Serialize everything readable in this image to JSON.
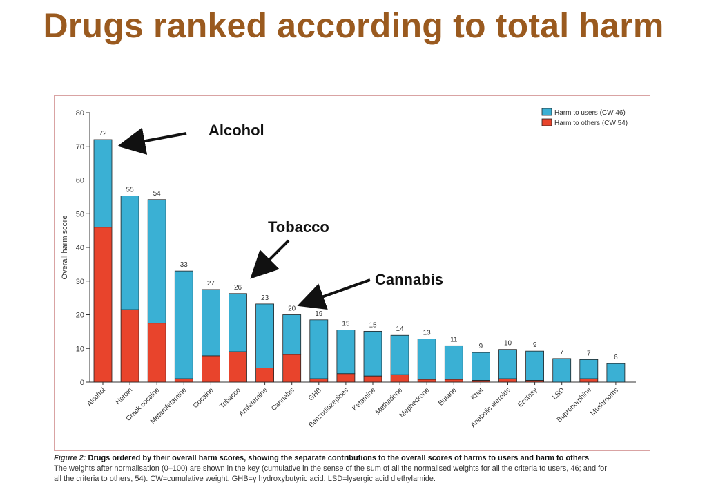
{
  "slide": {
    "title": "Drugs ranked according to total harm"
  },
  "annotations": {
    "alcohol": "Alcohol",
    "tobacco": "Tobacco",
    "cannabis": "Cannabis"
  },
  "caption": {
    "figure_label": "Figure 2:",
    "title": " Drugs ordered by their overall harm scores, showing the separate contributions to the overall scores of harms to users and harm to others",
    "line2": "The weights after normalisation (0–100) are shown in the key (cumulative in the sense of the sum of all the normalised weights for all the criteria to users, 46; and for",
    "line3": "all the criteria to others, 54). CW=cumulative weight. GHB=γ hydroxybutyric acid. LSD=lysergic acid diethylamide."
  },
  "chart_data": {
    "type": "bar",
    "stacked": true,
    "ylabel": "Overall harm score",
    "ylim": [
      0,
      80
    ],
    "yticks": [
      0,
      10,
      20,
      30,
      40,
      50,
      60,
      70,
      80
    ],
    "legend_position": "top-right",
    "categories": [
      "Alcohol",
      "Heroin",
      "Crack cocaine",
      "Metamfetamine",
      "Cocaine",
      "Tobacco",
      "Amfetamine",
      "Cannabis",
      "GHB",
      "Benzodiazepines",
      "Ketamine",
      "Methadone",
      "Mephedrone",
      "Butane",
      "Khat",
      "Anabolic steroids",
      "Ecstasy",
      "LSD",
      "Buprenorphine",
      "Mushrooms"
    ],
    "totals_labels": [
      "72",
      "55",
      "54",
      "33",
      "27",
      "26",
      "23",
      "20",
      "19",
      "15",
      "15",
      "14",
      "13",
      "11",
      "9",
      "10",
      "9",
      "7",
      "7",
      "6"
    ],
    "series": [
      {
        "name": "Harm to others (CW 54)",
        "color": "#e8442c",
        "values": [
          46,
          21.5,
          17.5,
          1,
          7.8,
          9,
          4.2,
          8.2,
          1,
          2.5,
          1.8,
          2.2,
          0.8,
          0.8,
          0.5,
          1,
          0.5,
          0,
          1,
          0
        ]
      },
      {
        "name": "Harm to users (CW 46)",
        "color": "#3ab0d4",
        "values": [
          26,
          33.8,
          36.7,
          32,
          19.7,
          17.3,
          19,
          11.8,
          17.5,
          13,
          13.3,
          11.7,
          12,
          10,
          8.3,
          8.7,
          8.7,
          7,
          5.7,
          5.5
        ]
      }
    ]
  }
}
